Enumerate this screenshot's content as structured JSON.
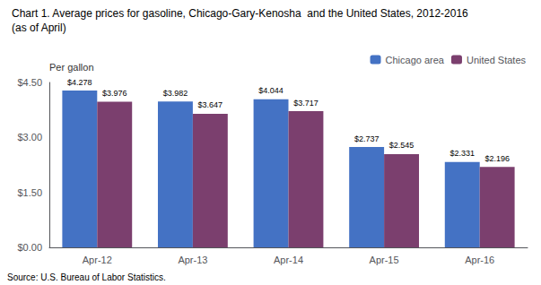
{
  "chart_data": {
    "type": "bar",
    "title": "Chart 1. Average prices for gasoline, Chicago-Gary-Kenosha  and the United States, 2012-2016",
    "subtitle": "(as of April)",
    "ylabel": "Per gallon",
    "source": "Source: U.S. Bureau of Labor Statistics.",
    "categories": [
      "Apr-12",
      "Apr-13",
      "Apr-14",
      "Apr-15",
      "Apr-16"
    ],
    "series": [
      {
        "name": "Chicago area",
        "color": "#4472C4",
        "values": [
          4.278,
          3.982,
          4.044,
          2.737,
          2.331
        ],
        "value_labels": [
          "$4.278",
          "$3.982",
          "$4.044",
          "$2.737",
          "$2.331"
        ]
      },
      {
        "name": "United States",
        "color": "#7B3F6E",
        "values": [
          3.976,
          3.647,
          3.717,
          2.545,
          2.196
        ],
        "value_labels": [
          "$3.976",
          "$3.647",
          "$3.717",
          "$2.545",
          "$2.196"
        ]
      }
    ],
    "ylim": [
      0,
      4.5
    ],
    "yticks": [
      {
        "value": 0.0,
        "label": "$0.00"
      },
      {
        "value": 1.5,
        "label": "$1.50"
      },
      {
        "value": 3.0,
        "label": "$3.00"
      },
      {
        "value": 4.5,
        "label": "$4.50"
      }
    ],
    "grid": false,
    "legend": "upper right",
    "data_labels": true
  }
}
